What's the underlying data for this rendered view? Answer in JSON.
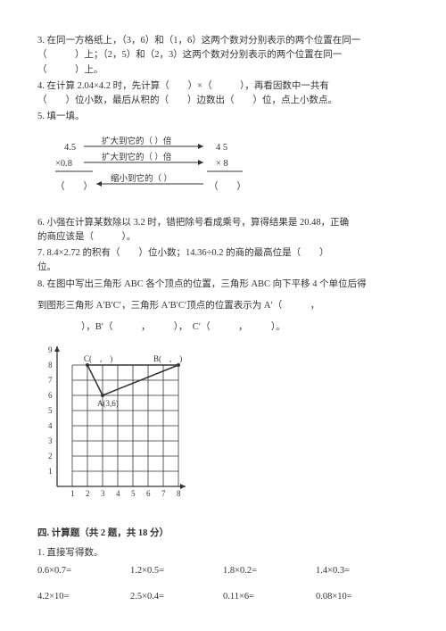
{
  "q3": {
    "l1": "3. 在同一方格纸上，（3，6）和（1，6）这两个数对分别表示的两个位置在同一",
    "l2": "（　　　）上；（2，5）和（2，3）这两个数对分别表示的两个位置在同一",
    "l3": "（　　　）上。"
  },
  "q4": {
    "l1": "4. 在计算 2.04×4.2 时，先计算（　　）×（　　　），再看因数中一共有",
    "l2": "（　　）位小数，最后从积的（　　）边数出（　　）位，点上小数点。"
  },
  "q5": {
    "l1": "5. 填一填。"
  },
  "diagram": {
    "left_top": "4.5",
    "right_top": "4 5",
    "arrow_up_label": "扩大到它的（ ）倍",
    "left_mid": "×0.8",
    "right_mid": "× 8",
    "arrow_mid_label": "扩大到它的（ ）倍",
    "left_bot": "（　　）",
    "right_bot": "（　　）",
    "arrow_back_label": "缩小到它的（ ）",
    "line_color": "#333333",
    "font_size": 10.5
  },
  "q6": {
    "l1": "6. 小强在计算某数除以 3.2 时，错把除号看成乘号，算得结果是 20.48，正确",
    "l2": "的商应该是（　　　）。"
  },
  "q7": {
    "l1": "7. 8.4×2.72 的积有（　　）位小数；14.36÷0.2 的商的最高位是（　　）",
    "l2": "位。"
  },
  "q8": {
    "l1": "8. 在图中写出三角形 ABC 各个顶点的位置，三角形 ABC 向下平移 4 个单位后得",
    "gap": "",
    "l2": "到图形三角形 A′B′C′，三角形 A′B′C′顶点的位置表示为 A′（　　　，",
    "l3": "　　），B′（　　　，　　　），　C′（　　　，　　　）。"
  },
  "grid": {
    "xmax": 8,
    "ymax": 9,
    "xticks": [
      1,
      2,
      3,
      4,
      5,
      6,
      7,
      8
    ],
    "yticks": [
      1,
      2,
      3,
      4,
      5,
      6,
      7,
      8,
      9
    ],
    "points": {
      "A": {
        "x": 3,
        "y": 6,
        "label": "A(3,6)"
      },
      "B": {
        "x": 8,
        "y": 8,
        "label": "B(　,　)"
      },
      "C": {
        "x": 2,
        "y": 8,
        "label": "C(　,　)"
      }
    },
    "line_color": "#333333",
    "bg": "#ffffff"
  },
  "section4": {
    "title": "四. 计算题（共 2 题，共 18 分）",
    "q1": "1. 直接写得数。",
    "row1": {
      "a": "0.6×0.7=",
      "b": "1.2×0.5=",
      "c": "1.8×0.2=",
      "d": "1.4×0.3="
    },
    "row2": {
      "a": "4.2×10=",
      "b": "2.5×0.4=",
      "c": "0.11×6=",
      "d": "0.08×10="
    }
  }
}
